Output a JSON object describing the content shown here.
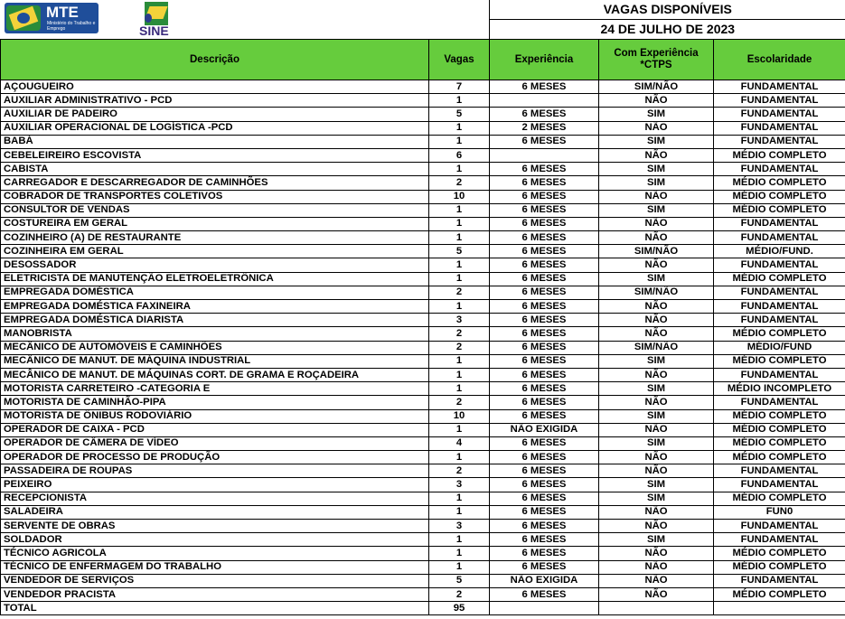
{
  "header": {
    "logo_mte": "MTE",
    "logo_mte_sub": "Ministério do Trabalho e Emprego",
    "logo_sine": "SINE",
    "title": "VAGAS DISPONÍVEIS",
    "date": "24 DE JULHO DE 2023"
  },
  "columns": [
    "Descrição",
    "Vagas",
    "Experiência",
    "Com Experiência *CTPS",
    "Escolaridade"
  ],
  "rows": [
    [
      "AÇOUGUEIRO",
      "7",
      "6 MESES",
      "SIM/NÃO",
      "FUNDAMENTAL"
    ],
    [
      "AUXILIAR  ADMINISTRATIVO - PCD",
      "1",
      "",
      "NÃO",
      "FUNDAMENTAL"
    ],
    [
      "AUXILIAR DE PADEIRO",
      "5",
      "6 MESES",
      "SIM",
      "FUNDAMENTAL"
    ],
    [
      "AUXILIAR OPERACIONAL DE LOGÍSTICA -PCD",
      "1",
      "2 MESES",
      "NÃO",
      "FUNDAMENTAL"
    ],
    [
      "BABÁ",
      "1",
      "6 MESES",
      "SIM",
      "FUNDAMENTAL"
    ],
    [
      "CEBELEIREIRO ESCOVISTA",
      "6",
      "",
      "NÃO",
      "MÉDIO COMPLETO"
    ],
    [
      "CABISTA",
      "1",
      "6 MESES",
      "SIM",
      "FUNDAMENTAL"
    ],
    [
      "CARREGADOR E DESCARREGADOR DE CAMINHÕES",
      "2",
      "6 MESES",
      "SIM",
      "MÉDIO COMPLETO"
    ],
    [
      "COBRADOR DE TRANSPORTES COLETIVOS",
      "10",
      "6 MESES",
      "NÃO",
      "MÉDIO COMPLETO"
    ],
    [
      "CONSULTOR DE VENDAS",
      "1",
      "6 MESES",
      "SIM",
      "MÉDIO COMPLETO"
    ],
    [
      "COSTUREIRA EM GERAL",
      "1",
      "6 MESES",
      "NÃO",
      "FUNDAMENTAL"
    ],
    [
      "COZINHEIRO (A) DE RESTAURANTE",
      "1",
      "6 MESES",
      "NÃO",
      "FUNDAMENTAL"
    ],
    [
      "COZINHEIRA EM GERAL",
      "5",
      "6 MESES",
      "SIM/NÃO",
      "MÉDIO/FUND."
    ],
    [
      "DESOSSADOR",
      "1",
      "6 MESES",
      "NÃO",
      "FUNDAMENTAL"
    ],
    [
      "ELETRICISTA DE MANUTENÇÃO ELETROELETRÔNICA",
      "1",
      "6 MESES",
      "SIM",
      "MÉDIO COMPLETO"
    ],
    [
      "EMPREGADA DOMÉSTICA",
      "2",
      "6 MESES",
      "SIM/NÃO",
      "FUNDAMENTAL"
    ],
    [
      "EMPREGADA DOMÉSTICA FAXINEIRA",
      "1",
      "6 MESES",
      "NÃO",
      "FUNDAMENTAL"
    ],
    [
      "EMPREGADA DOMÉSTICA DIARISTA",
      "3",
      "6 MESES",
      "NÃO",
      "FUNDAMENTAL"
    ],
    [
      "MANOBRISTA",
      "2",
      "6 MESES",
      "NÃO",
      "MÉDIO COMPLETO"
    ],
    [
      "MECÂNICO DE AUTOMÓVEIS E CAMINHÕES",
      "2",
      "6 MESES",
      "SIM/NÃO",
      "MÉDIO/FUND"
    ],
    [
      "MECÂNICO DE MANUT. DE MÁQUINA INDUSTRIAL",
      "1",
      "6 MESES",
      "SIM",
      "MÉDIO COMPLETO"
    ],
    [
      "MECÂNICO DE MANUT. DE MÁQUINAS CORT. DE GRAMA E ROÇADEIRA",
      "1",
      "6 MESES",
      "NÃO",
      "FUNDAMENTAL"
    ],
    [
      "MOTORISTA CARRETEIRO -CATEGORIA E",
      "1",
      "6 MESES",
      "SIM",
      "MÉDIO INCOMPLETO"
    ],
    [
      "MOTORISTA DE CAMINHÃO-PIPA",
      "2",
      "6 MESES",
      "NÃO",
      "FUNDAMENTAL"
    ],
    [
      "MOTORISTA DE ÔNIBUS RODOVIÁRIO",
      "10",
      "6 MESES",
      "SIM",
      "MÉDIO COMPLETO"
    ],
    [
      "OPERADOR DE CAIXA - PCD",
      "1",
      "NÃO EXIGIDA",
      "NÃO",
      "MÉDIO COMPLETO"
    ],
    [
      "OPERADOR DE CÂMERA DE VÍDEO",
      "4",
      "6 MESES",
      "SIM",
      "MÉDIO COMPLETO"
    ],
    [
      "OPERADOR DE PROCESSO DE PRODUÇÃO",
      "1",
      "6 MESES",
      "NÃO",
      "MÉDIO COMPLETO"
    ],
    [
      "PASSADEIRA DE ROUPAS",
      "2",
      "6 MESES",
      "NÃO",
      "FUNDAMENTAL"
    ],
    [
      "PEIXEIRO",
      "3",
      "6 MESES",
      "SIM",
      "FUNDAMENTAL"
    ],
    [
      "RECEPCIONISTA",
      "1",
      "6 MESES",
      "SIM",
      "MÉDIO COMPLETO"
    ],
    [
      "SALADEIRA",
      "1",
      "6 MESES",
      "NÃO",
      "FUN0"
    ],
    [
      "SERVENTE DE OBRAS",
      "3",
      "6 MESES",
      "NÃO",
      "FUNDAMENTAL"
    ],
    [
      "SOLDADOR",
      "1",
      "6 MESES",
      "SIM",
      "FUNDAMENTAL"
    ],
    [
      "TÉCNICO AGRICOLA",
      "1",
      "6 MESES",
      "NÃO",
      "MÉDIO COMPLETO"
    ],
    [
      "TÉCNICO DE ENFERMAGEM DO TRABALHO",
      "1",
      "6 MESES",
      "NÃO",
      "MÉDIO COMPLETO"
    ],
    [
      "VENDEDOR DE SERVIÇOS",
      "5",
      "NÃO EXIGIDA",
      "NÃO",
      "FUNDAMENTAL"
    ],
    [
      "VENDEDOR PRACISTA",
      "2",
      "6 MESES",
      "NÃO",
      "MÉDIO COMPLETO"
    ]
  ],
  "total": {
    "label": "TOTAL",
    "value": "95"
  },
  "colors": {
    "header_green": "#66cc3d"
  }
}
